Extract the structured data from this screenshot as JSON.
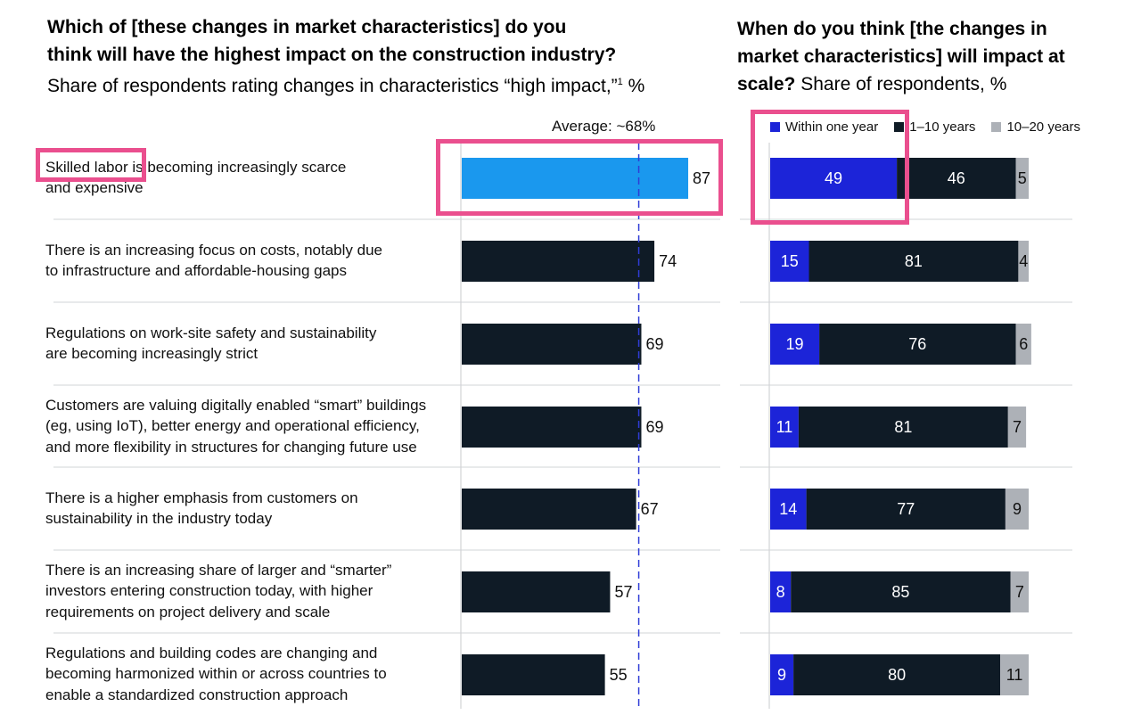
{
  "left_title": {
    "line1": "Which of [these changes in market characteristics] do you",
    "line2": "think will have the highest impact on the construction industry?",
    "subtitle": "Share of respondents rating changes in characteristics “high impact,”",
    "footnote_mark": "1",
    "unit": " %"
  },
  "right_title": {
    "line1": "When do you think [the changes in",
    "line2": "market characteristics] will impact at",
    "line3_bold": "scale?",
    "line3_rest": " Share of respondents, %"
  },
  "average_label": "Average: ~68%",
  "colors": {
    "highlight_bar": "#1a98ee",
    "dark_bar": "#0f1b26",
    "within_one_year": "#1c24d8",
    "one_to_ten": "#0f1b26",
    "ten_to_twenty": "#adb1b7",
    "average_line": "#2f3cd6",
    "annotation_box": "#ea4f8e"
  },
  "rows": [
    {
      "label_lines": [
        "Skilled labor is becoming increasingly scarce",
        "and expensive"
      ]
    },
    {
      "label_lines": [
        "There is an increasing focus on costs, notably due",
        "to infrastructure and affordable-housing gaps"
      ]
    },
    {
      "label_lines": [
        "Regulations on work-site safety and sustainability",
        "are becoming increasingly strict"
      ]
    },
    {
      "label_lines": [
        "Customers are valuing digitally enabled “smart” buildings",
        "(eg, using IoT), better energy and operational efficiency,",
        "and more flexibility in structures for changing future use"
      ]
    },
    {
      "label_lines": [
        "There is a higher emphasis from customers on",
        "sustainability in the industry today"
      ]
    },
    {
      "label_lines": [
        "There is an increasing share of larger and “smarter”",
        "investors entering construction today, with higher",
        "requirements on project delivery and scale"
      ]
    },
    {
      "label_lines": [
        "Regulations and building codes are changing and",
        "becoming harmonized within or across countries to",
        "enable a standardized construction approach"
      ]
    }
  ],
  "chart_data": [
    {
      "type": "bar",
      "orientation": "horizontal",
      "categories": [
        "Skilled labor is becoming increasingly scarce and expensive",
        "There is an increasing focus on costs, notably due to infrastructure and affordable-housing gaps",
        "Regulations on work-site safety and sustainability are becoming increasingly strict",
        "Customers are valuing digitally enabled “smart” buildings (eg, using IoT), better energy and operational efficiency, and more flexibility in structures for changing future use",
        "There is a higher emphasis from customers on sustainability in the industry today",
        "There is an increasing share of larger and “smarter” investors entering construction today, with higher requirements on project delivery and scale",
        "Regulations and building codes are changing and becoming harmonized within or across countries to enable a standardized construction approach"
      ],
      "values": [
        87,
        74,
        69,
        69,
        67,
        57,
        55
      ],
      "average": 68,
      "xlim": [
        0,
        100
      ],
      "highlighted_index": 0
    },
    {
      "type": "bar",
      "orientation": "horizontal",
      "stacked": true,
      "series": [
        {
          "name": "Within one year",
          "values": [
            49,
            15,
            19,
            11,
            14,
            8,
            9
          ]
        },
        {
          "name": "1–10 years",
          "values": [
            46,
            81,
            76,
            81,
            77,
            85,
            80
          ]
        },
        {
          "name": "10–20 years",
          "values": [
            5,
            4,
            6,
            7,
            9,
            7,
            11
          ]
        }
      ],
      "legend_position": "top"
    }
  ]
}
